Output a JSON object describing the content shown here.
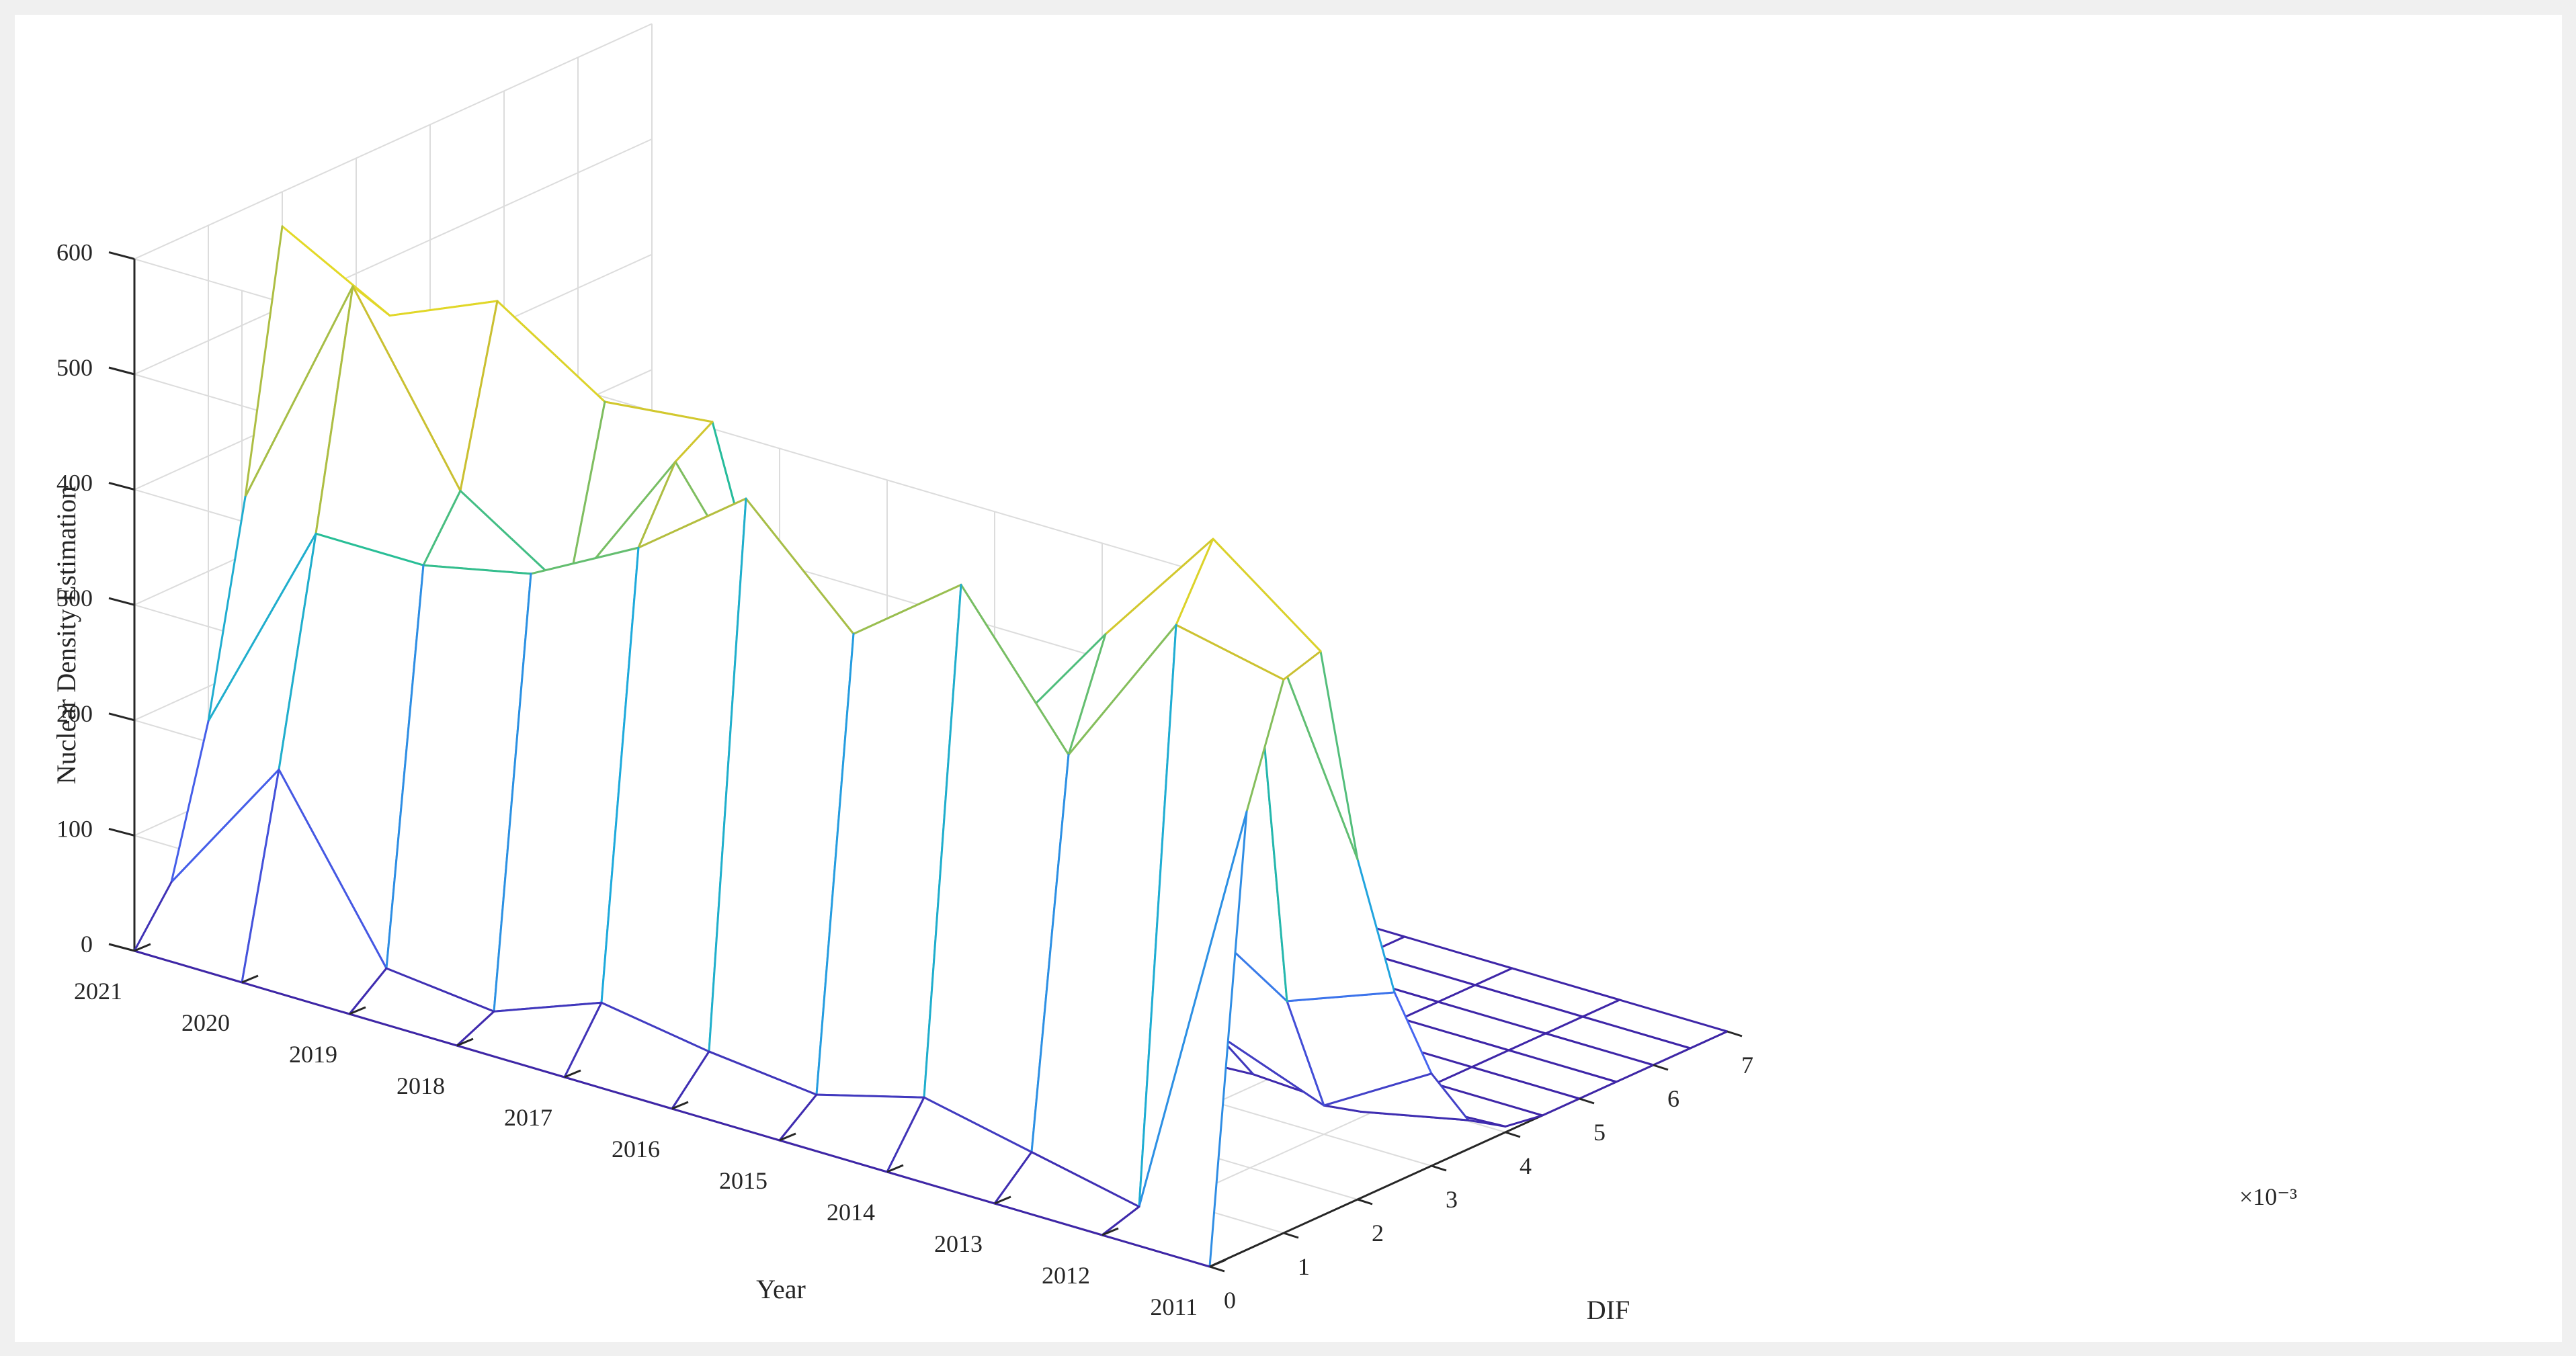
{
  "chart_data": {
    "type": "surface-mesh",
    "zlabel": "Nuclear Density Estimation",
    "xlabel": "DIF",
    "ylabel": "Year",
    "x_exponent_label": "×10⁻³",
    "zlim": [
      0,
      600
    ],
    "z_ticks": [
      "0",
      "100",
      "200",
      "300",
      "400",
      "500",
      "600"
    ],
    "x_ticks": [
      "0",
      "1",
      "2",
      "3",
      "4",
      "5",
      "6",
      "7"
    ],
    "y_ticks": [
      "2011",
      "2012",
      "2013",
      "2014",
      "2015",
      "2016",
      "2017",
      "2018",
      "2019",
      "2020",
      "2021"
    ],
    "x_grid_units": [
      0,
      0.5,
      1,
      1.5,
      2,
      2.5,
      3,
      3.5,
      4,
      4.5,
      5,
      5.5,
      6,
      6.5,
      7
    ],
    "years": [
      2011,
      2012,
      2013,
      2014,
      2015,
      2016,
      2017,
      2018,
      2019,
      2020,
      2021
    ],
    "z": [
      [
        0,
        380,
        480,
        490,
        295,
        165,
        80,
        25,
        5,
        0,
        0,
        0,
        0,
        0,
        0
      ],
      [
        0,
        10,
        500,
        560,
        510,
        130,
        25,
        5,
        0,
        0,
        0,
        0,
        0,
        0,
        0
      ],
      [
        0,
        30,
        360,
        450,
        390,
        190,
        60,
        10,
        0,
        0,
        0,
        0,
        0,
        0,
        0
      ],
      [
        0,
        50,
        480,
        330,
        220,
        70,
        20,
        5,
        0,
        0,
        0,
        0,
        0,
        0,
        0
      ],
      [
        0,
        25,
        410,
        340,
        200,
        55,
        15,
        5,
        0,
        0,
        0,
        0,
        0,
        0,
        0
      ],
      [
        0,
        35,
        500,
        360,
        190,
        40,
        10,
        0,
        0,
        0,
        0,
        0,
        0,
        0,
        0
      ],
      [
        0,
        50,
        430,
        490,
        510,
        120,
        30,
        5,
        0,
        0,
        0,
        0,
        0,
        0,
        0
      ],
      [
        0,
        15,
        380,
        350,
        500,
        90,
        20,
        5,
        0,
        0,
        0,
        0,
        0,
        0,
        0
      ],
      [
        0,
        25,
        360,
        410,
        560,
        130,
        25,
        5,
        0,
        0,
        0,
        0,
        0,
        0,
        0
      ],
      [
        0,
        170,
        360,
        560,
        520,
        260,
        40,
        10,
        0,
        0,
        0,
        0,
        0,
        0,
        0
      ],
      [
        0,
        45,
        170,
        350,
        570,
        420,
        190,
        60,
        10,
        0,
        0,
        0,
        0,
        0,
        0
      ]
    ]
  }
}
